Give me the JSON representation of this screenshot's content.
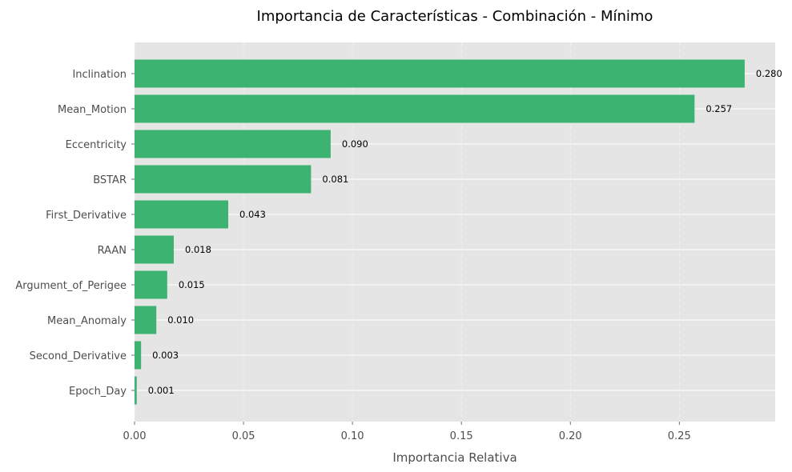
{
  "chart_data": {
    "type": "bar",
    "orientation": "horizontal",
    "title": "Importancia de Características - Combinación - Mínimo",
    "xlabel": "Importancia Relativa",
    "ylabel": "",
    "categories": [
      "Inclination",
      "Mean_Motion",
      "Eccentricity",
      "BSTAR",
      "First_Derivative",
      "RAAN",
      "Argument_of_Perigee",
      "Mean_Anomaly",
      "Second_Derivative",
      "Epoch_Day"
    ],
    "values": [
      0.28,
      0.257,
      0.09,
      0.081,
      0.043,
      0.018,
      0.015,
      0.01,
      0.003,
      0.001
    ],
    "value_labels": [
      "0.280",
      "0.257",
      "0.090",
      "0.081",
      "0.043",
      "0.018",
      "0.015",
      "0.010",
      "0.003",
      "0.001"
    ],
    "xlim": [
      0,
      0.294
    ],
    "xticks": [
      0.0,
      0.05,
      0.1,
      0.15,
      0.2,
      0.25
    ],
    "xtick_labels": [
      "0.00",
      "0.05",
      "0.10",
      "0.15",
      "0.20",
      "0.25"
    ],
    "grid": true,
    "legend": "none",
    "colors": {
      "bar": "#3cb371",
      "plot_background": "#e5e5e5",
      "grid": "#ffffff"
    }
  }
}
